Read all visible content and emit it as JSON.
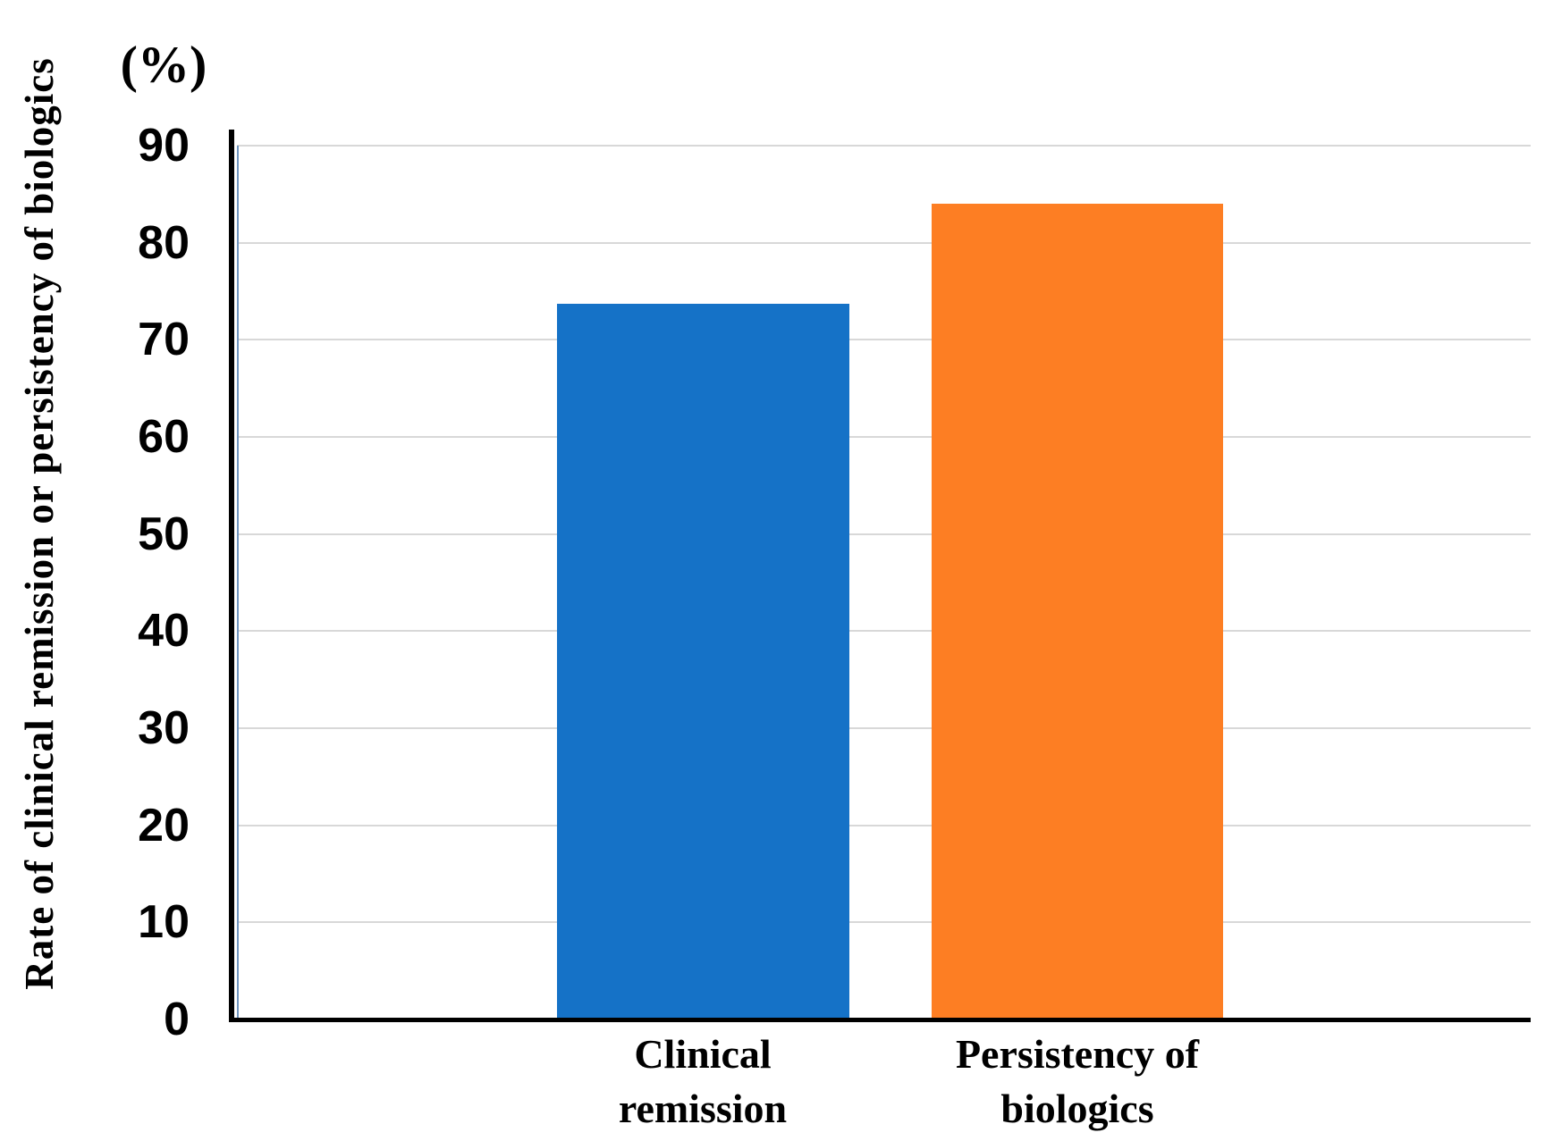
{
  "figure": {
    "background_color": "#ffffff"
  },
  "chart_data": {
    "type": "bar",
    "title": "",
    "xlabel": "",
    "ylabel": "Rate of clinical remission or persistency of biologics",
    "unit": "(%)",
    "categories": [
      "Clinical remission",
      "Persistency of biologics"
    ],
    "category_lines": [
      [
        "Clinical",
        "remission"
      ],
      [
        "Persistency of",
        "biologics"
      ]
    ],
    "values": [
      73.7,
      84
    ],
    "bar_colors": [
      "#1572C7",
      "#FD7E23"
    ],
    "ylim": [
      0,
      90
    ],
    "yticks": [
      0,
      10,
      20,
      30,
      40,
      50,
      60,
      70,
      80,
      90
    ],
    "grid": true,
    "gridline_color": "#D8D8D8",
    "axis_color": "#000000",
    "plot_border_color": "#6F94BE",
    "legend_position": "none"
  }
}
